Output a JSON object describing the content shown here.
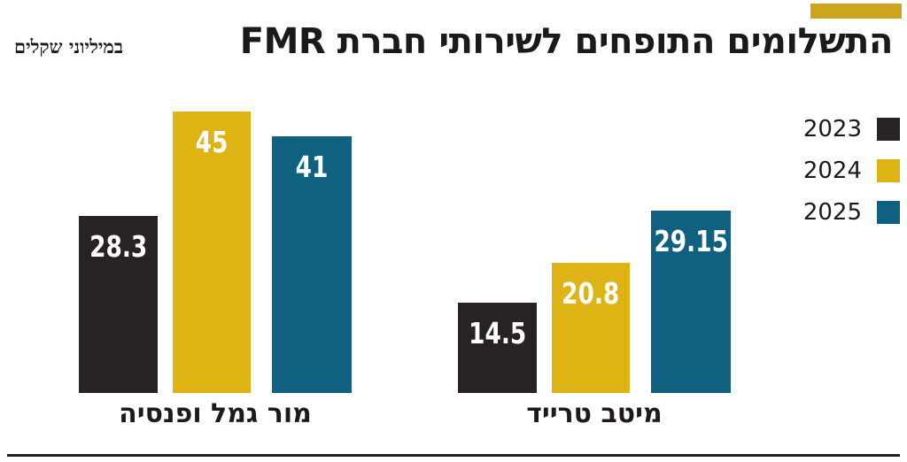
{
  "header": {
    "title": "התשלומים התופחים לשירותי חברת FMR",
    "subtitle": "במיליוני שקלים"
  },
  "brand": {
    "tag_color": "#cda41d"
  },
  "chart_data": {
    "type": "bar",
    "title": "התשלומים התופחים לשירותי חברת FMR",
    "subtitle": "במיליוני שקלים",
    "categories": [
      "מור גמל ופנסיה",
      "מיטב טרייד"
    ],
    "series": [
      {
        "name": "2023",
        "color": "#272223",
        "values": [
          28.3,
          14.5
        ]
      },
      {
        "name": "2024",
        "color": "#ddb414",
        "values": [
          45,
          20.8
        ]
      },
      {
        "name": "2025",
        "color": "#10617f",
        "values": [
          41,
          29.15
        ]
      }
    ],
    "ylim": [
      0,
      45
    ],
    "grid": false,
    "value_labels": true,
    "legend_position": "right",
    "group_order_left_to_right": [
      "מור גמל ופנסיה",
      "מיטב טרייד"
    ],
    "bar_order_in_group_left_to_right": [
      "2023",
      "2024",
      "2025"
    ]
  }
}
